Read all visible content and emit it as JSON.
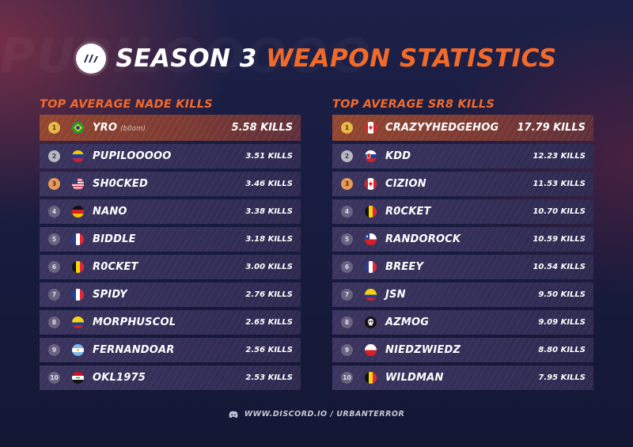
{
  "header": {
    "title_part1": "SEASON 3",
    "title_part2": "WEAPON STATISTICS",
    "logo_icon": "urban-terror-logo-icon",
    "watermark": "PUPILOOOOO"
  },
  "colors": {
    "accent": "#f26a2a",
    "row_bg": "#352f58",
    "first_row_bg": "#8a4230",
    "gold": "#e8b84a",
    "silver": "#b9b9c3",
    "bronze": "#e69a5a"
  },
  "nade": {
    "title": "TOP AVERAGE NADE KILLS",
    "rows": [
      {
        "rank": "1",
        "flag": "brazil",
        "name": "YRO",
        "alias": "(b0om)",
        "kills": "5.58 KILLS"
      },
      {
        "rank": "2",
        "flag": "venezuela",
        "name": "PUPILOOOOO",
        "kills": "3.51 KILLS"
      },
      {
        "rank": "3",
        "flag": "usa",
        "name": "SH0CKED",
        "kills": "3.46 KILLS"
      },
      {
        "rank": "4",
        "flag": "germany",
        "name": "NANO",
        "kills": "3.38 KILLS"
      },
      {
        "rank": "5",
        "flag": "france",
        "name": "BIDDLE",
        "kills": "3.18 KILLS"
      },
      {
        "rank": "6",
        "flag": "belgium",
        "name": "R0CKET",
        "kills": "3.00 KILLS"
      },
      {
        "rank": "7",
        "flag": "france",
        "name": "SPIDY",
        "kills": "2.76 KILLS"
      },
      {
        "rank": "8",
        "flag": "colombia",
        "name": "MORPHUSCOL",
        "kills": "2.65 KILLS"
      },
      {
        "rank": "9",
        "flag": "argentina",
        "name": "FERNANDOAR",
        "kills": "2.56 KILLS"
      },
      {
        "rank": "10",
        "flag": "iraq",
        "name": "OKL1975",
        "kills": "2.53 KILLS"
      }
    ]
  },
  "sr8": {
    "title": "TOP AVERAGE SR8 KILLS",
    "rows": [
      {
        "rank": "1",
        "flag": "canada",
        "name": "CRAZYYHEDGEHOG",
        "kills": "17.79 KILLS"
      },
      {
        "rank": "2",
        "flag": "slovakia",
        "name": "KDD",
        "kills": "12.23 KILLS"
      },
      {
        "rank": "3",
        "flag": "canada",
        "name": "CIZION",
        "kills": "11.53 KILLS"
      },
      {
        "rank": "4",
        "flag": "belgium",
        "name": "R0CKET",
        "kills": "10.70 KILLS"
      },
      {
        "rank": "5",
        "flag": "chile",
        "name": "RANDOROCK",
        "kills": "10.59 KILLS"
      },
      {
        "rank": "6",
        "flag": "france",
        "name": "BREEY",
        "kills": "10.54 KILLS"
      },
      {
        "rank": "7",
        "flag": "colombia",
        "name": "JSN",
        "kills": "9.50 KILLS"
      },
      {
        "rank": "8",
        "flag": "skull",
        "name": "AZMOG",
        "kills": "9.09 KILLS"
      },
      {
        "rank": "9",
        "flag": "poland",
        "name": "NIEDZWIEDZ",
        "kills": "8.80 KILLS"
      },
      {
        "rank": "10",
        "flag": "belgium",
        "name": "WILDMAN",
        "kills": "7.95 KILLS"
      }
    ]
  },
  "footer": {
    "icon": "discord-icon",
    "text": "WWW.DISCORD.IO / URBANTERROR"
  }
}
